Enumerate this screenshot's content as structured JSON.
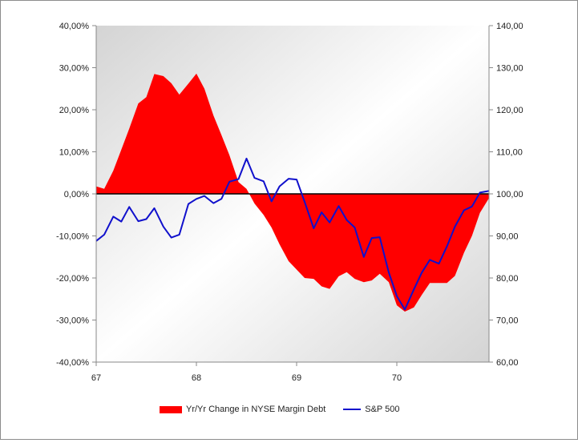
{
  "chart_data": {
    "type": "area",
    "x_tick_labels": [
      "67",
      "68",
      "69",
      "70"
    ],
    "x_range": [
      67,
      70.92
    ],
    "left_axis": {
      "ylim": [
        -40,
        40
      ],
      "ticks": [
        -40,
        -30,
        -20,
        -10,
        0,
        10,
        20,
        30,
        40
      ],
      "tick_labels": [
        "-40,00%",
        "-30,00%",
        "-20,00%",
        "-10,00%",
        "0,00%",
        "10,00%",
        "20,00%",
        "30,00%",
        "40,00%"
      ]
    },
    "right_axis": {
      "ylim": [
        60,
        140
      ],
      "ticks": [
        60,
        70,
        80,
        90,
        100,
        110,
        120,
        130,
        140
      ],
      "tick_labels": [
        "60,00",
        "70,00",
        "80,00",
        "90,00",
        "100,00",
        "110,00",
        "120,00",
        "130,00",
        "140,00"
      ]
    },
    "legend_position": "bottom",
    "colors": {
      "area": "#ff0000",
      "line": "#1010cc",
      "zero_line": "#000000"
    },
    "series": [
      {
        "name": "Yr/Yr Change in NYSE Margin Debt",
        "axis": "left",
        "kind": "area",
        "x": [
          67.0,
          67.08,
          67.17,
          67.25,
          67.33,
          67.42,
          67.5,
          67.58,
          67.67,
          67.75,
          67.83,
          67.92,
          68.0,
          68.08,
          68.17,
          68.25,
          68.33,
          68.42,
          68.5,
          68.58,
          68.67,
          68.75,
          68.83,
          68.92,
          69.0,
          69.08,
          69.17,
          69.25,
          69.33,
          69.42,
          69.5,
          69.58,
          69.67,
          69.75,
          69.83,
          69.92,
          70.0,
          70.08,
          70.17,
          70.25,
          70.33,
          70.42,
          70.5,
          70.58,
          70.67,
          70.75,
          70.83,
          70.92
        ],
        "y": [
          1.8,
          1.2,
          5.5,
          10.5,
          15.5,
          21.5,
          23.0,
          28.5,
          28.0,
          26.3,
          23.6,
          26.2,
          28.6,
          25.0,
          18.6,
          14.0,
          9.2,
          2.8,
          1.2,
          -2.3,
          -5.0,
          -8.0,
          -12.0,
          -16.0,
          -18.0,
          -20.0,
          -20.2,
          -22.0,
          -22.6,
          -19.6,
          -18.6,
          -20.2,
          -21.0,
          -20.6,
          -19.0,
          -21.0,
          -26.5,
          -28.0,
          -27.0,
          -24.0,
          -21.2,
          -21.2,
          -21.2,
          -19.5,
          -14.0,
          -10.0,
          -4.5,
          -1.0
        ]
      },
      {
        "name": "S&P 500",
        "axis": "right",
        "kind": "line",
        "x": [
          67.0,
          67.08,
          67.17,
          67.25,
          67.33,
          67.42,
          67.5,
          67.58,
          67.67,
          67.75,
          67.83,
          67.92,
          68.0,
          68.08,
          68.17,
          68.25,
          68.33,
          68.42,
          68.5,
          68.58,
          68.67,
          68.75,
          68.83,
          68.92,
          69.0,
          69.08,
          69.17,
          69.25,
          69.33,
          69.42,
          69.5,
          69.58,
          69.67,
          69.75,
          69.83,
          69.92,
          70.0,
          70.08,
          70.17,
          70.25,
          70.33,
          70.42,
          70.5,
          70.58,
          70.67,
          70.75,
          70.83,
          70.92
        ],
        "y": [
          88.8,
          90.3,
          94.6,
          93.4,
          96.9,
          93.5,
          94.0,
          96.6,
          92.2,
          89.6,
          90.3,
          97.6,
          98.8,
          99.5,
          97.8,
          98.8,
          102.9,
          103.5,
          108.4,
          103.8,
          103.0,
          98.2,
          101.8,
          103.6,
          103.4,
          98.1,
          91.8,
          95.6,
          93.2,
          97.1,
          93.8,
          92.0,
          85.0,
          89.5,
          89.7,
          81.3,
          75.7,
          72.5,
          77.3,
          81.3,
          84.3,
          83.4,
          87.5,
          92.2,
          96.1,
          97.0,
          100.3,
          100.7
        ]
      }
    ]
  }
}
